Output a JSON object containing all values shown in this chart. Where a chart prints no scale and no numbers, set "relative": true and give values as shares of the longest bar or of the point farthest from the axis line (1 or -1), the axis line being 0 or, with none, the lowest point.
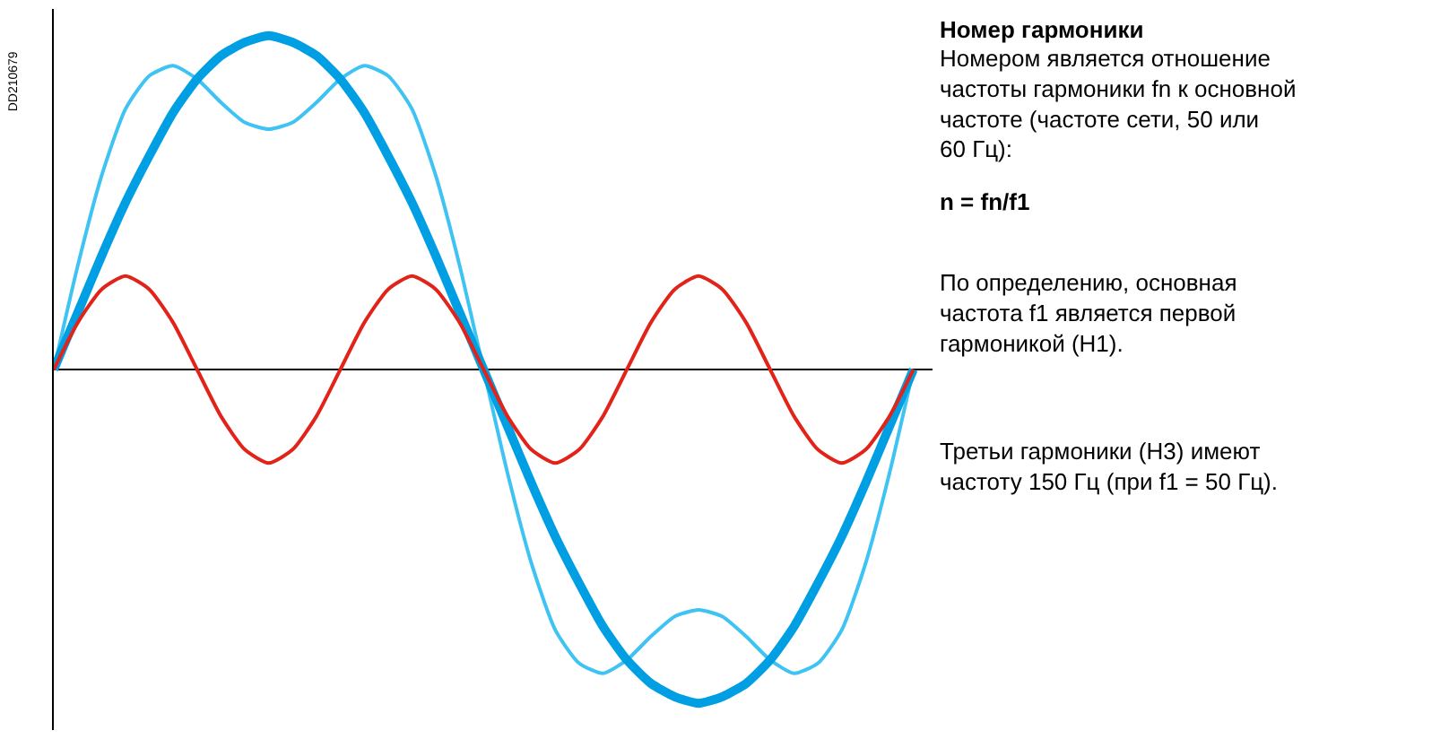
{
  "chart_data": {
    "type": "line",
    "relative": true,
    "marker": "none",
    "line_style": "solid",
    "tick_labels": false,
    "categories": [
      null,
      null,
      null,
      null,
      null,
      null,
      null,
      null,
      null,
      null,
      null,
      null,
      null,
      null,
      null,
      null,
      null,
      null,
      null,
      null,
      null,
      null,
      null,
      null,
      null,
      null,
      null,
      null,
      null,
      null,
      null,
      null,
      null,
      null,
      null,
      null,
      null
    ],
    "series": [
      {
        "color": "#3ec3f2",
        "values": [
          0,
          0.31,
          0.58,
          0.78,
          0.88,
          0.91,
          0.87,
          0.8,
          0.74,
          0.72,
          0.74,
          0.8,
          0.87,
          0.91,
          0.88,
          0.78,
          0.58,
          0.31,
          0,
          -0.31,
          -0.58,
          -0.78,
          -0.88,
          -0.91,
          -0.87,
          -0.8,
          -0.74,
          -0.72,
          -0.74,
          -0.8,
          -0.87,
          -0.91,
          -0.88,
          -0.78,
          -0.58,
          -0.31,
          0
        ]
      },
      {
        "color": "#009fe3",
        "values": [
          0,
          0.17,
          0.34,
          0.5,
          0.64,
          0.77,
          0.87,
          0.94,
          0.98,
          1,
          0.98,
          0.94,
          0.87,
          0.77,
          0.64,
          0.5,
          0.34,
          0.17,
          0,
          -0.17,
          -0.34,
          -0.5,
          -0.64,
          -0.77,
          -0.87,
          -0.94,
          -0.98,
          -1,
          -0.98,
          -0.94,
          -0.87,
          -0.77,
          -0.64,
          -0.5,
          -0.34,
          -0.17,
          0
        ]
      },
      {
        "color": "#e2231a",
        "values": [
          0,
          0.14,
          0.24,
          0.28,
          0.24,
          0.14,
          0,
          -0.14,
          -0.24,
          -0.28,
          -0.24,
          -0.14,
          0,
          0.14,
          0.24,
          0.28,
          0.24,
          0.14,
          0,
          -0.14,
          -0.24,
          -0.28,
          -0.24,
          -0.14,
          0,
          0.14,
          0.24,
          0.28,
          0.24,
          0.14,
          0,
          -0.14,
          -0.24,
          -0.28,
          -0.24,
          -0.14,
          0
        ]
      }
    ],
    "title": "Номер гармоники",
    "annotations": [
      "DD210679",
      "Номером является отношение\nчастоты гармоники fn к основной\nчастоте (частоте сети, 50 или\n60 Гц):",
      "n = fn/f1",
      "По определению, основная\nчастота f1 является первой\nгармоникой (H1).",
      "Третьи гармоники (H3) имеют\nчастоту 150 Гц (при f1 = 50 Гц)."
    ]
  }
}
